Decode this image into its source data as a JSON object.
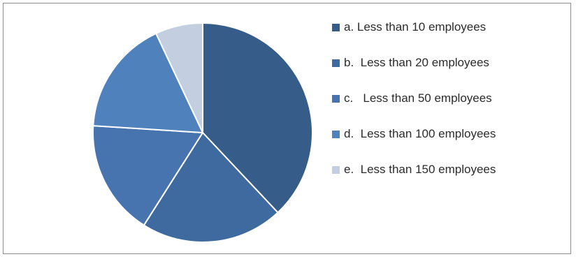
{
  "chart_data": {
    "type": "pie",
    "title": "",
    "legend_position": "right",
    "slices": [
      {
        "label": "a. Less than 10 employees",
        "value": 38,
        "color": "#365d89"
      },
      {
        "label": "b.  Less than 20 employees",
        "value": 21,
        "color": "#3f6a9f"
      },
      {
        "label": "c.   Less than 50 employees",
        "value": 17,
        "color": "#4774ae"
      },
      {
        "label": "d.  Less than 100 employees",
        "value": 17,
        "color": "#4f81bd"
      },
      {
        "label": "e.  Less than 150 employees",
        "value": 7,
        "color": "#c3cfe1"
      }
    ]
  }
}
